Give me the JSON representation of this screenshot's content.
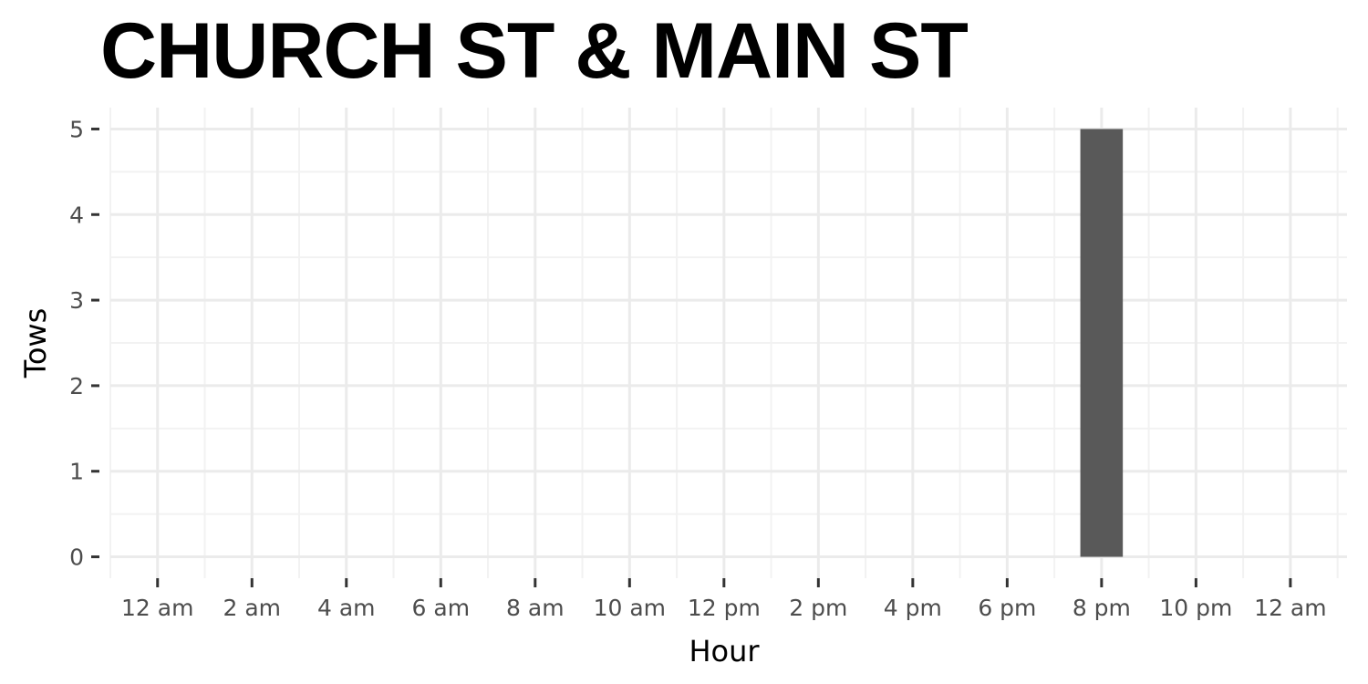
{
  "chart_data": {
    "type": "bar",
    "title": "CHURCH ST & MAIN ST",
    "xlabel": "Hour",
    "ylabel": "Tows",
    "x_ticks": [
      "12 am",
      "2 am",
      "4 am",
      "6 am",
      "8 am",
      "10 am",
      "12 pm",
      "2 pm",
      "4 pm",
      "6 pm",
      "8 pm",
      "10 pm",
      "12 am"
    ],
    "x_tick_hours": [
      0,
      2,
      4,
      6,
      8,
      10,
      12,
      14,
      16,
      18,
      20,
      22,
      24
    ],
    "xlim": [
      -1,
      25.2
    ],
    "y_ticks": [
      0,
      1,
      2,
      3,
      4,
      5
    ],
    "ylim": [
      -0.25,
      5.25
    ],
    "bars": [
      {
        "hour": 20,
        "value": 5
      }
    ],
    "grid": true,
    "colors": {
      "bar": "#595959",
      "grid_major": "#ebebeb",
      "grid_minor": "#f2f2f2"
    }
  }
}
